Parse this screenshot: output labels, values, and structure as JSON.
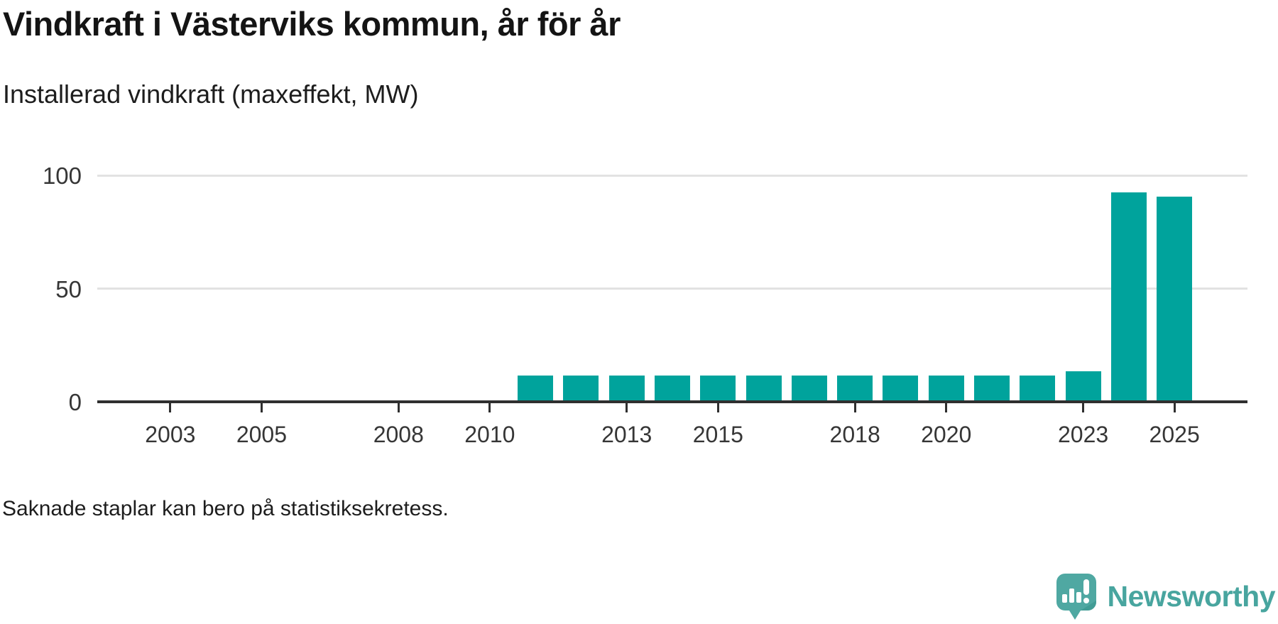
{
  "header": {
    "title": "Vindkraft i Västerviks kommun, år för år",
    "subtitle": "Installerad vindkraft (maxeffekt, MW)"
  },
  "chart_data": {
    "type": "bar",
    "title": "Vindkraft i Västerviks kommun, år för år",
    "subtitle": "Installerad vindkraft (maxeffekt, MW)",
    "unit": "MW",
    "x": [
      2011,
      2012,
      2013,
      2014,
      2015,
      2016,
      2017,
      2018,
      2019,
      2020,
      2021,
      2022,
      2023,
      2024,
      2025
    ],
    "values": [
      11,
      11,
      11,
      11,
      11,
      11,
      11,
      11,
      11,
      11,
      11,
      11,
      13,
      92,
      90
    ],
    "ylim": [
      0,
      100
    ],
    "yticks": [
      0,
      50,
      100
    ],
    "xticks": [
      2003,
      2005,
      2008,
      2010,
      2013,
      2015,
      2018,
      2020,
      2023,
      2025
    ],
    "x_domain": [
      2001.4,
      2026.6
    ],
    "grid": "horizontal",
    "legend": "none",
    "bar_color": "#00a39c"
  },
  "footer": {
    "note": "Saknade staplar kan bero på statistiksekretess.",
    "brand": "Newsworthy"
  },
  "colors": {
    "bar": "#00a39c",
    "axis": "#2f2f2f",
    "grid": "#e2e2e2",
    "title_text": "#141414",
    "tick_text": "#363636",
    "brand_teal": "#48a59f",
    "logo_bubble": "#4fa8a2",
    "logo_shadow": "#37918b",
    "background": "#ffffff"
  }
}
